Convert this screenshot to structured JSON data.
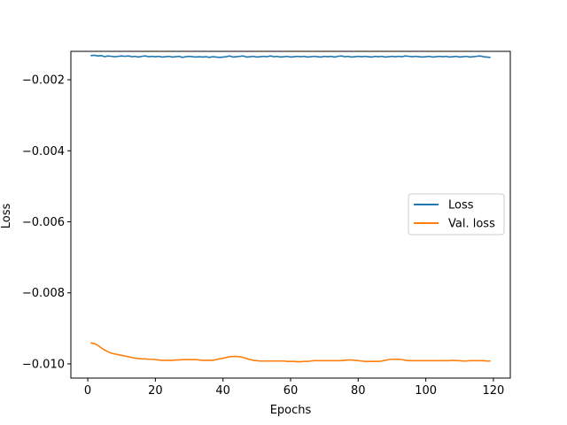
{
  "chart_data": {
    "type": "line",
    "xlabel": "Epochs",
    "ylabel": "Loss",
    "xlim": [
      -5,
      125
    ],
    "ylim": [
      -0.0104,
      -0.0012
    ],
    "xticks": [
      0,
      20,
      40,
      60,
      80,
      100,
      120
    ],
    "xtick_labels": [
      "0",
      "20",
      "40",
      "60",
      "80",
      "100",
      "120"
    ],
    "yticks": [
      -0.002,
      -0.004,
      -0.006,
      -0.008,
      -0.01
    ],
    "ytick_labels": [
      "−0.002",
      "−0.004",
      "−0.006",
      "−0.008",
      "−0.010"
    ],
    "grid": false,
    "legend_position": "center-right",
    "series": [
      {
        "name": "Loss",
        "color": "#1f77b4",
        "x": [
          1,
          2,
          3,
          4,
          5,
          6,
          7,
          8,
          9,
          10,
          11,
          12,
          13,
          14,
          15,
          16,
          17,
          18,
          19,
          20,
          21,
          22,
          23,
          24,
          25,
          26,
          27,
          28,
          29,
          30,
          31,
          32,
          33,
          34,
          35,
          36,
          37,
          38,
          39,
          40,
          41,
          42,
          43,
          44,
          45,
          46,
          47,
          48,
          49,
          50,
          51,
          52,
          53,
          54,
          55,
          56,
          57,
          58,
          59,
          60,
          61,
          62,
          63,
          64,
          65,
          66,
          67,
          68,
          69,
          70,
          71,
          72,
          73,
          74,
          75,
          76,
          77,
          78,
          79,
          80,
          81,
          82,
          83,
          84,
          85,
          86,
          87,
          88,
          89,
          90,
          91,
          92,
          93,
          94,
          95,
          96,
          97,
          98,
          99,
          100,
          101,
          102,
          103,
          104,
          105,
          106,
          107,
          108,
          109,
          110,
          111,
          112,
          113,
          114,
          115,
          116,
          117,
          118,
          119
        ],
        "y": [
          -0.00132,
          -0.00131,
          -0.00133,
          -0.00132,
          -0.00135,
          -0.00133,
          -0.00134,
          -0.00135,
          -0.00134,
          -0.00133,
          -0.00134,
          -0.00133,
          -0.00135,
          -0.00134,
          -0.00136,
          -0.00134,
          -0.00133,
          -0.00135,
          -0.00134,
          -0.00135,
          -0.00134,
          -0.00136,
          -0.00135,
          -0.00134,
          -0.00136,
          -0.00135,
          -0.00134,
          -0.00137,
          -0.00135,
          -0.00134,
          -0.00135,
          -0.00136,
          -0.00135,
          -0.00136,
          -0.00135,
          -0.00137,
          -0.00135,
          -0.00136,
          -0.00137,
          -0.00136,
          -0.00135,
          -0.00133,
          -0.00136,
          -0.00135,
          -0.00134,
          -0.00133,
          -0.00136,
          -0.00135,
          -0.00134,
          -0.00136,
          -0.00135,
          -0.00134,
          -0.00135,
          -0.00133,
          -0.00135,
          -0.00134,
          -0.00136,
          -0.00135,
          -0.00134,
          -0.00136,
          -0.00135,
          -0.00134,
          -0.00135,
          -0.00134,
          -0.00136,
          -0.00135,
          -0.00134,
          -0.00135,
          -0.00136,
          -0.00134,
          -0.00135,
          -0.00134,
          -0.00136,
          -0.00134,
          -0.00133,
          -0.00135,
          -0.00134,
          -0.00136,
          -0.00135,
          -0.00134,
          -0.00135,
          -0.00134,
          -0.00135,
          -0.00136,
          -0.00134,
          -0.00135,
          -0.00134,
          -0.00136,
          -0.00135,
          -0.00134,
          -0.00135,
          -0.00134,
          -0.00135,
          -0.00133,
          -0.00134,
          -0.00135,
          -0.00134,
          -0.00135,
          -0.00136,
          -0.00135,
          -0.00134,
          -0.00136,
          -0.00135,
          -0.00134,
          -0.00135,
          -0.00134,
          -0.00136,
          -0.00135,
          -0.00134,
          -0.00136,
          -0.00135,
          -0.00134,
          -0.00136,
          -0.00135,
          -0.00134,
          -0.00133,
          -0.00135,
          -0.00136,
          -0.00137
        ]
      },
      {
        "name": "Val. loss",
        "color": "#ff7f0e",
        "x": [
          1,
          2,
          3,
          4,
          5,
          6,
          7,
          8,
          9,
          10,
          11,
          12,
          13,
          14,
          15,
          16,
          17,
          18,
          19,
          20,
          21,
          22,
          23,
          24,
          25,
          26,
          27,
          28,
          29,
          30,
          31,
          32,
          33,
          34,
          35,
          36,
          37,
          38,
          39,
          40,
          41,
          42,
          43,
          44,
          45,
          46,
          47,
          48,
          49,
          50,
          51,
          52,
          53,
          54,
          55,
          56,
          57,
          58,
          59,
          60,
          61,
          62,
          63,
          64,
          65,
          66,
          67,
          68,
          69,
          70,
          71,
          72,
          73,
          74,
          75,
          76,
          77,
          78,
          79,
          80,
          81,
          82,
          83,
          84,
          85,
          86,
          87,
          88,
          89,
          90,
          91,
          92,
          93,
          94,
          95,
          96,
          97,
          98,
          99,
          100,
          101,
          102,
          103,
          104,
          105,
          106,
          107,
          108,
          109,
          110,
          111,
          112,
          113,
          114,
          115,
          116,
          117,
          118,
          119
        ],
        "y": [
          -0.00941,
          -0.00943,
          -0.00948,
          -0.00955,
          -0.00961,
          -0.00966,
          -0.0097,
          -0.00972,
          -0.00974,
          -0.00976,
          -0.00978,
          -0.0098,
          -0.00982,
          -0.00984,
          -0.00985,
          -0.00986,
          -0.00986,
          -0.00987,
          -0.00987,
          -0.00988,
          -0.00989,
          -0.0099,
          -0.0099,
          -0.0099,
          -0.0099,
          -0.00989,
          -0.00989,
          -0.00988,
          -0.00988,
          -0.00988,
          -0.00988,
          -0.00988,
          -0.00989,
          -0.0099,
          -0.0099,
          -0.0099,
          -0.0099,
          -0.00988,
          -0.00986,
          -0.00984,
          -0.00982,
          -0.0098,
          -0.00979,
          -0.00979,
          -0.0098,
          -0.00982,
          -0.00985,
          -0.00988,
          -0.0099,
          -0.00991,
          -0.00992,
          -0.00992,
          -0.00992,
          -0.00992,
          -0.00992,
          -0.00992,
          -0.00992,
          -0.00992,
          -0.00993,
          -0.00993,
          -0.00993,
          -0.00994,
          -0.00994,
          -0.00993,
          -0.00993,
          -0.00992,
          -0.00991,
          -0.00991,
          -0.00991,
          -0.00991,
          -0.00991,
          -0.00991,
          -0.00991,
          -0.00991,
          -0.00991,
          -0.0099,
          -0.00989,
          -0.00989,
          -0.0099,
          -0.00991,
          -0.00992,
          -0.00993,
          -0.00993,
          -0.00993,
          -0.00993,
          -0.00993,
          -0.00992,
          -0.0099,
          -0.00988,
          -0.00987,
          -0.00987,
          -0.00987,
          -0.00988,
          -0.0099,
          -0.00991,
          -0.00991,
          -0.00991,
          -0.00991,
          -0.00991,
          -0.00991,
          -0.00991,
          -0.00991,
          -0.00991,
          -0.00991,
          -0.00991,
          -0.00991,
          -0.00991,
          -0.0099,
          -0.00991,
          -0.00991,
          -0.00992,
          -0.00992,
          -0.00991,
          -0.00991,
          -0.00991,
          -0.00991,
          -0.00991,
          -0.00992,
          -0.00992
        ]
      }
    ]
  }
}
